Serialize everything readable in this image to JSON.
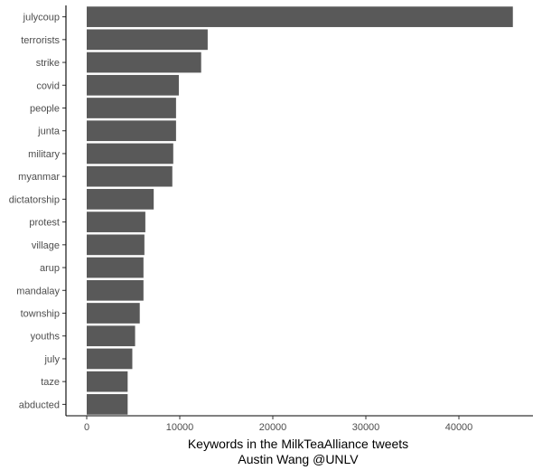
{
  "chart_data": {
    "type": "bar",
    "orientation": "horizontal",
    "categories": [
      "julycoup",
      "terrorists",
      "strike",
      "covid",
      "people",
      "junta",
      "military",
      "myanmar",
      "dictatorship",
      "protest",
      "village",
      "arup",
      "mandalay",
      "township",
      "youths",
      "july",
      "taze",
      "abducted"
    ],
    "values": [
      45800,
      13000,
      12300,
      9900,
      9600,
      9600,
      9300,
      9200,
      7200,
      6300,
      6200,
      6100,
      6100,
      5700,
      5200,
      4900,
      4400,
      4400
    ],
    "title": "",
    "xlabel": "Keywords in the MilkTeaAlliance tweets",
    "caption": "Austin Wang @UNLV",
    "ylabel": "",
    "xlim": [
      0,
      46000
    ],
    "x_ticks": [
      0,
      10000,
      20000,
      30000,
      40000
    ],
    "grid": false,
    "legend": "none",
    "bar_color": "#595959"
  }
}
